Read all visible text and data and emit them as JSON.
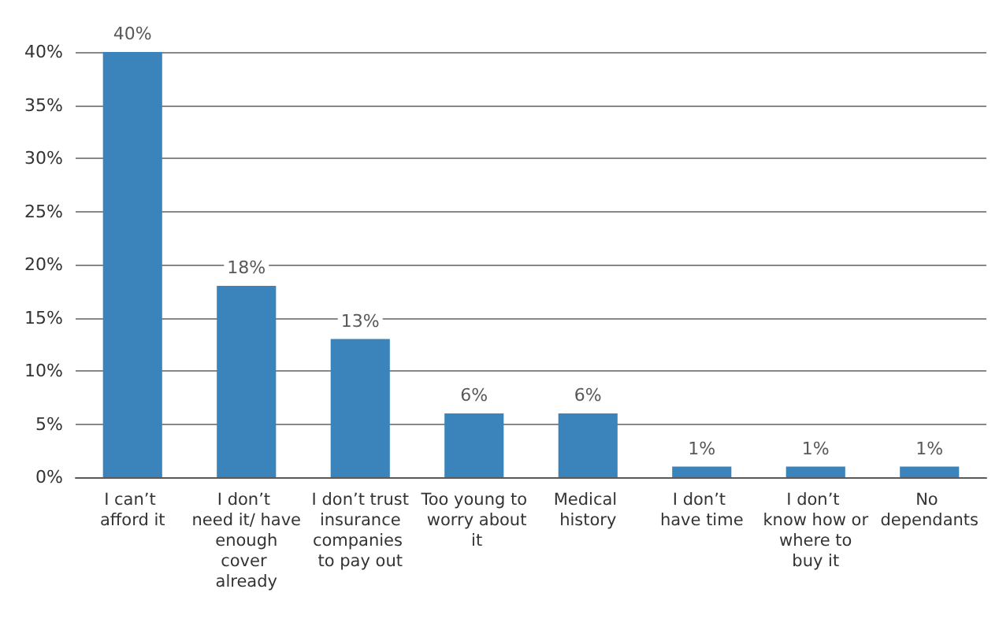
{
  "chart_data": {
    "type": "bar",
    "categories": [
      "I can’t afford it",
      "I don’t need it/ have enough cover already",
      "I don’t trust insurance companies to pay out",
      "Too young to worry about it",
      "Medical history",
      "I don’t have time",
      "I don’t know how or where to buy it",
      "No dependants"
    ],
    "values": [
      40,
      18,
      13,
      6,
      6,
      1,
      1,
      1
    ],
    "value_labels": [
      "40%",
      "18%",
      "13%",
      "6%",
      "6%",
      "1%",
      "1%",
      "1%"
    ],
    "color": "#3a84bb",
    "ylim": [
      0,
      40
    ],
    "yticks": [
      {
        "value": 0,
        "label": "0%"
      },
      {
        "value": 5,
        "label": "5%"
      },
      {
        "value": 10,
        "label": "10%"
      },
      {
        "value": 15,
        "label": "15%"
      },
      {
        "value": 20,
        "label": "20%"
      },
      {
        "value": 25,
        "label": "25%"
      },
      {
        "value": 30,
        "label": "30%"
      },
      {
        "value": 35,
        "label": "35%"
      },
      {
        "value": 40,
        "label": "40%"
      }
    ],
    "grid": "y"
  }
}
